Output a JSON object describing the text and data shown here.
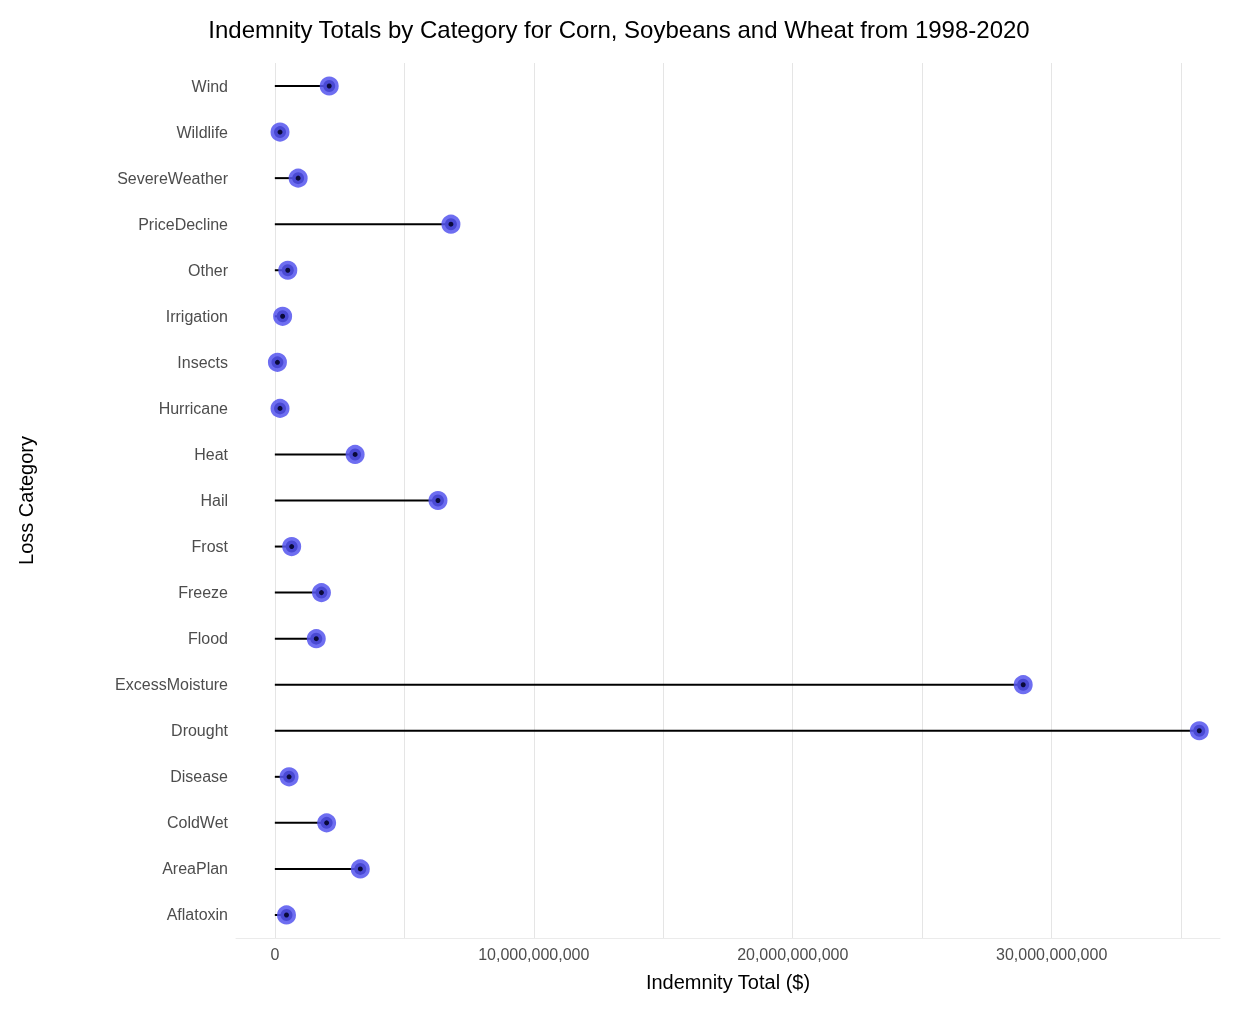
{
  "chart_data": {
    "type": "lollipop",
    "orientation": "horizontal",
    "title": "Indemnity Totals by Category for Corn, Soybeans and Wheat from 1998-2020",
    "xlabel": "Indemnity Total ($)",
    "ylabel": "Loss Category",
    "categories": [
      "Wind",
      "Wildlife",
      "SevereWeather",
      "PriceDecline",
      "Other",
      "Irrigation",
      "Insects",
      "Hurricane",
      "Heat",
      "Hail",
      "Frost",
      "Freeze",
      "Flood",
      "ExcessMoisture",
      "Drought",
      "Disease",
      "ColdWet",
      "AreaPlan",
      "Aflatoxin"
    ],
    "values": [
      2100000000,
      200000000,
      900000000,
      6800000000,
      500000000,
      300000000,
      100000000,
      200000000,
      3100000000,
      6300000000,
      650000000,
      1800000000,
      1600000000,
      28900000000,
      35700000000,
      550000000,
      2000000000,
      3300000000,
      450000000
    ],
    "color": "#5555ee",
    "marker": "circle",
    "grid": "x",
    "xlim": [
      -1500000000,
      36500000000
    ],
    "xticks": [
      0,
      {
        "value": 5000000000,
        "label": null
      },
      {
        "value": 10000000000,
        "label": "10,000,000,000"
      },
      {
        "value": 15000000000,
        "label": null
      },
      {
        "value": 20000000000,
        "label": "20,000,000,000"
      },
      {
        "value": 25000000000,
        "label": null
      },
      {
        "value": 30000000000,
        "label": "30,000,000,000"
      },
      {
        "value": 35000000000,
        "label": null
      }
    ]
  }
}
